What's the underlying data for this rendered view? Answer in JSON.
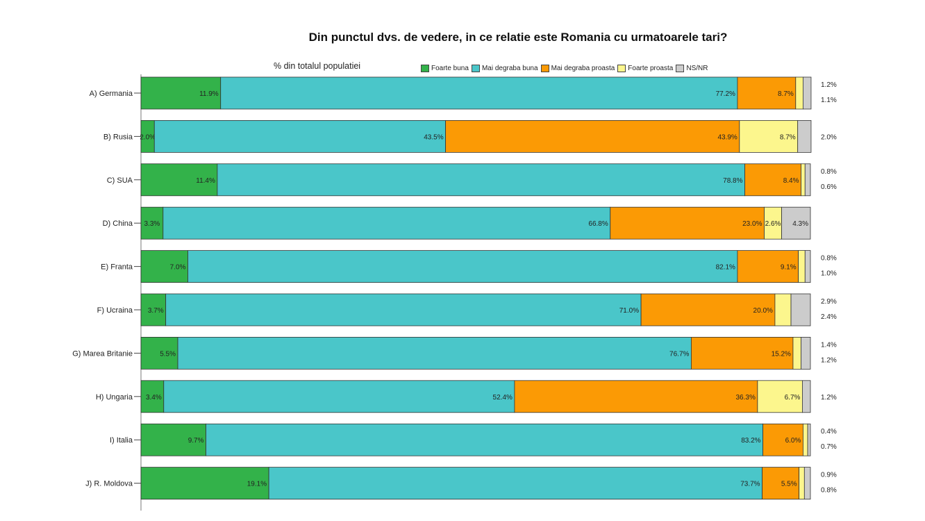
{
  "chart_data": {
    "type": "bar",
    "orientation": "horizontal",
    "stacked": true,
    "title": "Din punctul dvs. de vedere, in ce relatie este Romania cu urmatoarele tari?",
    "subtitle": "% din totalul populatiei",
    "xlim": [
      0,
      100
    ],
    "categories": [
      "A) Germania",
      "B) Rusia",
      "C) SUA",
      "D) China",
      "E) Franta",
      "F) Ucraina",
      "G) Marea Britanie",
      "H) Ungaria",
      "I) Italia",
      "J) R. Moldova"
    ],
    "series": [
      {
        "name": "Foarte buna",
        "color": "#33b24a",
        "values": [
          11.9,
          2.0,
          11.4,
          3.3,
          7.0,
          3.7,
          5.5,
          3.4,
          9.7,
          19.1
        ],
        "labels": [
          "11.9%",
          "2.0%",
          "11.4%",
          "3.3%",
          "7.0%",
          "3.7%",
          "5.5%",
          "3.4%",
          "9.7%",
          "19.1%"
        ]
      },
      {
        "name": "Mai degraba buna",
        "color": "#4ac6c9",
        "values": [
          77.2,
          43.5,
          78.8,
          66.8,
          82.1,
          71.0,
          76.7,
          52.4,
          83.2,
          73.7
        ],
        "labels": [
          "77.2%",
          "43.5%",
          "78.8%",
          "66.8%",
          "82.1%",
          "71.0%",
          "76.7%",
          "52.4%",
          "83.2%",
          "73.7%"
        ]
      },
      {
        "name": "Mai degraba proasta",
        "color": "#fb9a05",
        "values": [
          8.7,
          43.9,
          8.4,
          23.0,
          9.1,
          20.0,
          15.2,
          36.3,
          6.0,
          5.5
        ],
        "labels": [
          "8.7%",
          "43.9%",
          "8.4%",
          "23.0%",
          "9.1%",
          "20.0%",
          "15.2%",
          "36.3%",
          "6.0%",
          "5.5%"
        ]
      },
      {
        "name": "Foarte proasta",
        "color": "#fcf68d",
        "values": [
          1.1,
          8.7,
          0.6,
          2.6,
          1.0,
          2.4,
          1.2,
          6.7,
          0.7,
          0.8
        ],
        "labels": [
          "",
          "8.7%",
          "",
          "2.6%",
          "",
          "",
          "",
          "6.7%",
          "",
          ""
        ]
      },
      {
        "name": "NS/NR",
        "color": "#cccccc",
        "values": [
          1.2,
          2.0,
          0.8,
          4.3,
          0.8,
          2.9,
          1.4,
          1.2,
          0.4,
          0.9
        ],
        "labels": [
          "",
          "",
          "",
          "4.3%",
          "",
          "",
          "",
          "",
          "",
          ""
        ]
      }
    ],
    "side_labels": [
      [
        "1.2%",
        "1.1%"
      ],
      [
        "2.0%"
      ],
      [
        "0.8%",
        "0.6%"
      ],
      [],
      [
        "0.8%",
        "1.0%"
      ],
      [
        "2.9%",
        "2.4%"
      ],
      [
        "1.4%",
        "1.2%"
      ],
      [
        "1.2%"
      ],
      [
        "0.4%",
        "0.7%"
      ],
      [
        "0.9%",
        "0.8%"
      ]
    ],
    "legend_position": "top"
  }
}
